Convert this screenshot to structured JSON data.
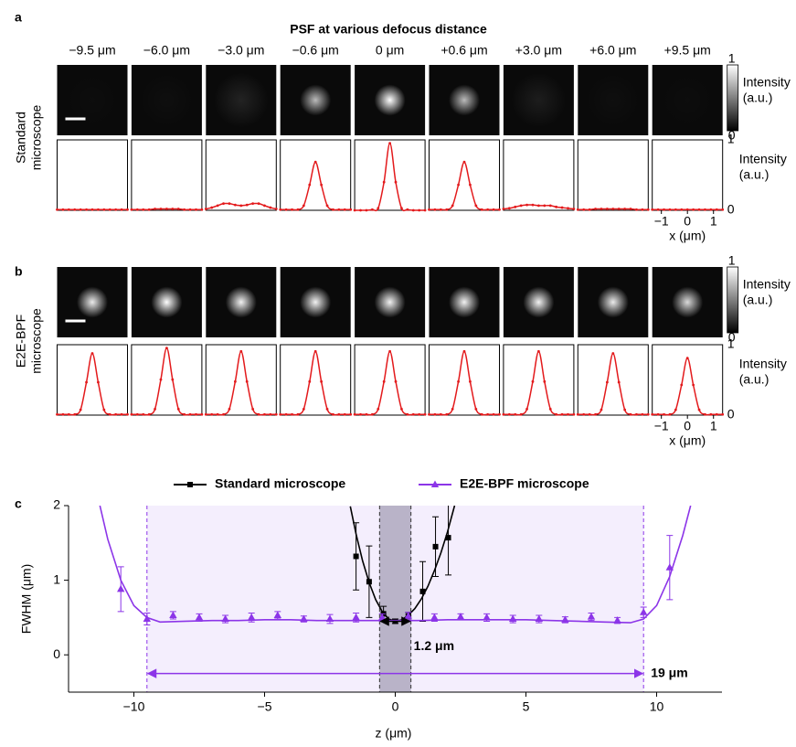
{
  "panel_labels": [
    "a",
    "b",
    "c"
  ],
  "psf": {
    "title": "PSF at various defocus distance",
    "defocus_labels": [
      "−9.5 μm",
      "−6.0 μm",
      "−3.0 μm",
      "−0.6 μm",
      "0 μm",
      "+0.6 μm",
      "+3.0 μm",
      "+6.0 μm",
      "+9.5 μm"
    ],
    "colorbar": {
      "ticks": [
        1,
        0
      ],
      "label_lines": [
        "Intensity",
        "(a.u.)"
      ]
    },
    "profile_axis": {
      "xlim": [
        -1.35,
        1.35
      ],
      "ylim": [
        0,
        1.05
      ],
      "xticks": [
        {
          "value": -1,
          "label": "−1"
        },
        0,
        1
      ],
      "yticks": [
        1,
        0
      ],
      "ylabel_lines": [
        "Intensity",
        "(a.u.)"
      ],
      "xlabel": "x (μm)"
    },
    "line_color": "#e31a1c",
    "x": [
      -1.35,
      -1.125,
      -0.9,
      -0.675,
      -0.45,
      -0.225,
      0,
      0.225,
      0.45,
      0.675,
      0.9,
      1.125,
      1.35
    ],
    "rows": [
      {
        "label_lines": [
          "Standard",
          "microscope"
        ],
        "profiles": [
          [
            0.01,
            0.01,
            0.01,
            0.01,
            0.01,
            0.01,
            0.01,
            0.01,
            0.01,
            0.01,
            0.01,
            0.01,
            0.01
          ],
          [
            0.01,
            0.01,
            0.01,
            0.01,
            0.02,
            0.02,
            0.02,
            0.02,
            0.02,
            0.01,
            0.01,
            0.01,
            0.01
          ],
          [
            0.02,
            0.04,
            0.07,
            0.1,
            0.1,
            0.08,
            0.07,
            0.08,
            0.1,
            0.1,
            0.07,
            0.04,
            0.02
          ],
          [
            0.01,
            0.01,
            0.01,
            0.01,
            0.07,
            0.38,
            0.72,
            0.38,
            0.07,
            0.01,
            0.01,
            0.01,
            0.01
          ],
          [
            0,
            0,
            0,
            0.01,
            0.03,
            0.42,
            1.0,
            0.42,
            0.03,
            0.01,
            0,
            0,
            0
          ],
          [
            0.01,
            0.01,
            0.01,
            0.01,
            0.07,
            0.38,
            0.72,
            0.38,
            0.07,
            0.01,
            0.01,
            0.01,
            0.01
          ],
          [
            0.02,
            0.03,
            0.05,
            0.07,
            0.08,
            0.08,
            0.07,
            0.07,
            0.07,
            0.05,
            0.04,
            0.03,
            0.02
          ],
          [
            0.01,
            0.01,
            0.01,
            0.02,
            0.02,
            0.02,
            0.02,
            0.02,
            0.02,
            0.02,
            0.01,
            0.01,
            0.01
          ],
          [
            0.01,
            0.01,
            0.01,
            0.01,
            0.01,
            0.01,
            0.01,
            0.01,
            0.01,
            0.01,
            0.01,
            0.01,
            0.01
          ]
        ]
      },
      {
        "label_lines": [
          "E2E-BPF",
          "microscope"
        ],
        "profiles": [
          [
            0.01,
            0.01,
            0.01,
            0.01,
            0.08,
            0.49,
            0.92,
            0.49,
            0.08,
            0.01,
            0.01,
            0.01,
            0.01
          ],
          [
            0.01,
            0.01,
            0.01,
            0.01,
            0.09,
            0.53,
            1.0,
            0.53,
            0.09,
            0.01,
            0.01,
            0.01,
            0.01
          ],
          [
            0.01,
            0.01,
            0.01,
            0.01,
            0.09,
            0.5,
            0.95,
            0.5,
            0.09,
            0.01,
            0.01,
            0.01,
            0.01
          ],
          [
            0.01,
            0.01,
            0.01,
            0.01,
            0.09,
            0.5,
            0.95,
            0.5,
            0.09,
            0.01,
            0.01,
            0.01,
            0.01
          ],
          [
            0.01,
            0.01,
            0.01,
            0.01,
            0.09,
            0.5,
            0.95,
            0.5,
            0.09,
            0.01,
            0.01,
            0.01,
            0.01
          ],
          [
            0.01,
            0.01,
            0.01,
            0.01,
            0.09,
            0.5,
            0.95,
            0.5,
            0.09,
            0.01,
            0.01,
            0.01,
            0.01
          ],
          [
            0.01,
            0.01,
            0.01,
            0.01,
            0.09,
            0.5,
            0.95,
            0.5,
            0.09,
            0.01,
            0.01,
            0.01,
            0.01
          ],
          [
            0.01,
            0.01,
            0.01,
            0.01,
            0.08,
            0.49,
            0.92,
            0.49,
            0.08,
            0.01,
            0.01,
            0.01,
            0.01
          ],
          [
            0.01,
            0.01,
            0.01,
            0.01,
            0.08,
            0.45,
            0.85,
            0.45,
            0.08,
            0.01,
            0.01,
            0.01,
            0.01
          ]
        ]
      }
    ]
  },
  "chart_data": {
    "type": "scatter",
    "xlabel": "z (μm)",
    "ylabel": "FWHM (μm)",
    "xlim": [
      -12.5,
      12.5
    ],
    "ylim": [
      -0.5,
      2
    ],
    "xticks": [
      {
        "value": -10,
        "label": "−10"
      },
      {
        "value": -5,
        "label": "−5"
      },
      0,
      5,
      10
    ],
    "yticks": [
      0,
      1,
      2
    ],
    "legend": "top",
    "series": [
      {
        "name": "Standard microscope",
        "color": "#000000",
        "marker": "square",
        "x": [
          -1.5,
          -1.0,
          -0.45,
          0,
          0.5,
          1.05,
          1.54,
          2.03
        ],
        "values": [
          1.32,
          0.98,
          0.55,
          0.45,
          0.52,
          0.85,
          1.45,
          1.57
        ],
        "errors": [
          0.45,
          0.48,
          0.1,
          0.03,
          0.05,
          0.4,
          0.4,
          0.5
        ],
        "fit_x": [
          -1.72,
          -1.5,
          -1.25,
          -1,
          -0.75,
          -0.5,
          -0.25,
          0,
          0.25,
          0.5,
          0.75,
          1,
          1.25,
          1.5,
          1.75,
          2,
          2.27
        ],
        "fit_values": [
          1.99,
          1.62,
          1.26,
          0.97,
          0.74,
          0.58,
          0.48,
          0.45,
          0.47,
          0.53,
          0.62,
          0.75,
          0.92,
          1.13,
          1.37,
          1.65,
          2.0
        ]
      },
      {
        "name": "E2E-BPF microscope",
        "color": "#8c35e8",
        "marker": "triangle",
        "x": [
          -10.5,
          -9.5,
          -8.5,
          -7.5,
          -6.5,
          -5.5,
          -4.5,
          -3.5,
          -2.5,
          -1.5,
          -0.5,
          0.5,
          1.5,
          2.5,
          3.5,
          4.5,
          5.5,
          6.5,
          7.5,
          8.5,
          9.5,
          10.5
        ],
        "values": [
          0.88,
          0.48,
          0.53,
          0.5,
          0.48,
          0.5,
          0.53,
          0.48,
          0.48,
          0.5,
          0.5,
          0.52,
          0.5,
          0.51,
          0.5,
          0.48,
          0.48,
          0.47,
          0.51,
          0.46,
          0.57,
          1.17
        ],
        "errors": [
          0.3,
          0.08,
          0.05,
          0.05,
          0.05,
          0.06,
          0.05,
          0.04,
          0.06,
          0.06,
          0.05,
          0.05,
          0.05,
          0.04,
          0.05,
          0.05,
          0.05,
          0.04,
          0.05,
          0.04,
          0.07,
          0.43
        ],
        "fit_x": [
          -11.3,
          -11,
          -10.5,
          -10,
          -9.5,
          -9,
          -8,
          -7,
          -6,
          -5,
          -4,
          -3,
          -2,
          -1,
          0,
          1,
          2,
          3,
          4,
          5,
          6,
          7,
          8,
          9,
          9.5,
          10,
          10.5,
          11,
          11.3
        ],
        "fit_values": [
          2,
          1.55,
          1.0,
          0.66,
          0.5,
          0.44,
          0.45,
          0.46,
          0.46,
          0.47,
          0.47,
          0.46,
          0.46,
          0.46,
          0.46,
          0.46,
          0.47,
          0.47,
          0.47,
          0.47,
          0.46,
          0.45,
          0.44,
          0.43,
          0.48,
          0.66,
          1.05,
          1.6,
          2
        ]
      }
    ],
    "shaded_ranges": [
      {
        "xlim": [
          -9.5,
          9.5
        ],
        "color": "#f4eefd",
        "edge_color": "#8c35e8"
      },
      {
        "xlim": [
          -0.6,
          0.6
        ],
        "color": "#b9b3c8",
        "edge_color": "#333333"
      }
    ],
    "span_annotations": [
      {
        "text": "1.2 μm",
        "xlim": [
          -0.6,
          0.6
        ],
        "y": 0.45,
        "color": "#000000"
      },
      {
        "text": "19 μm",
        "xlim": [
          -9.5,
          9.5
        ],
        "y": -0.25,
        "color": "#8c35e8"
      }
    ]
  }
}
